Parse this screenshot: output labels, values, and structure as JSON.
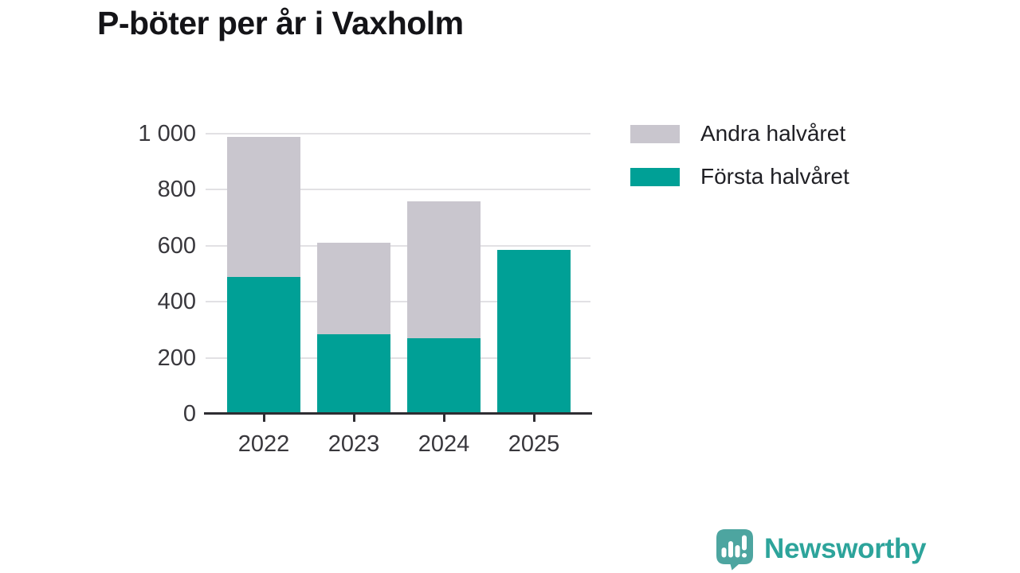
{
  "title": "P-böter per år i Vaxholm",
  "chart_data": {
    "type": "bar",
    "stacked": true,
    "title": "P-böter per år i Vaxholm",
    "categories": [
      "2022",
      "2023",
      "2024",
      "2025"
    ],
    "series": [
      {
        "name": "Första halvåret",
        "color": "#00a096",
        "values": [
          490,
          285,
          270,
          585
        ]
      },
      {
        "name": "Andra halvåret",
        "color": "#c9c6ce",
        "values": [
          500,
          325,
          490,
          0
        ]
      }
    ],
    "legend": [
      {
        "label": "Andra halvåret",
        "color": "#c9c6ce"
      },
      {
        "label": "Första halvåret",
        "color": "#00a096"
      }
    ],
    "legend_position": "top-right",
    "grid": true,
    "ylim": [
      0,
      1000
    ],
    "yticks": [
      0,
      200,
      400,
      600,
      800,
      1000
    ],
    "ytick_labels": [
      "0",
      "200",
      "400",
      "600",
      "800",
      "1 000"
    ],
    "xlabel": "",
    "ylabel": ""
  },
  "colors": {
    "background": "#ffffff",
    "gridline": "#e2e1e4",
    "axis": "#2e2d32",
    "tick_label": "#38373c",
    "title_text": "#141418",
    "legend_text": "#202025",
    "logo_icon": "#4da5a0",
    "logo_text": "#2da49b"
  },
  "footer": {
    "brand": "Newsworthy"
  }
}
